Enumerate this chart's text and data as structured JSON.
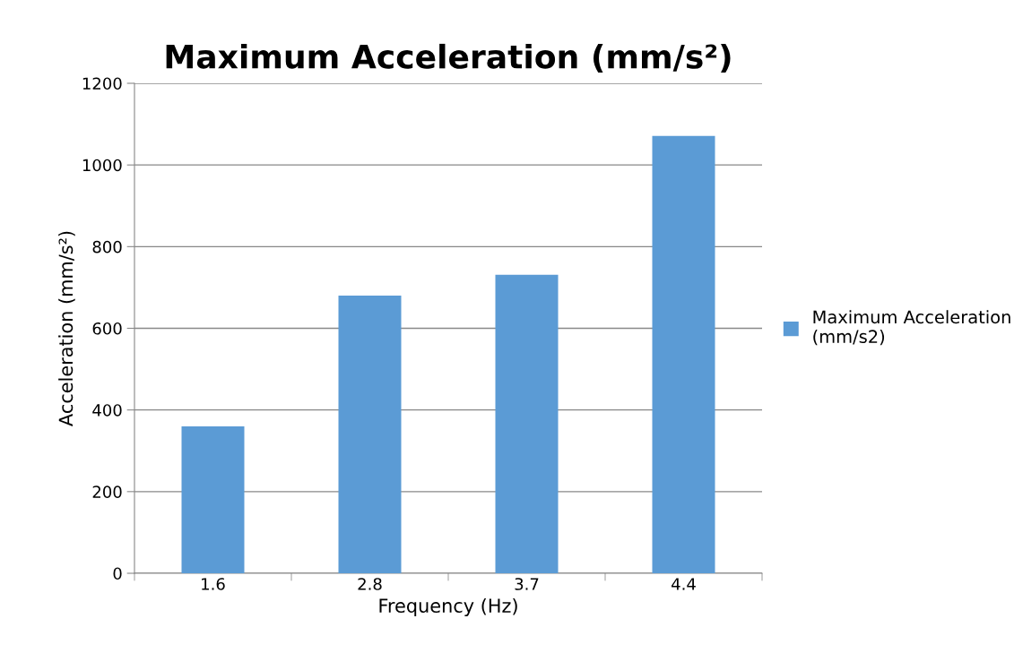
{
  "chart_data": {
    "type": "bar",
    "title": "Maximum Acceleration (mm/s²)",
    "xlabel": "Frequency (Hz)",
    "ylabel": "Acceleration (mm/s²)",
    "categories": [
      "1.6",
      "2.8",
      "3.7",
      "4.4"
    ],
    "series": [
      {
        "name": "Maximum Acceleration (mm/s2)",
        "color": "#5b9bd5",
        "values": [
          360,
          680,
          731,
          1071
        ]
      }
    ],
    "ylim": [
      0,
      1200
    ],
    "yticks": [
      0,
      200,
      400,
      600,
      800,
      1000,
      1200
    ],
    "grid": "y",
    "legend": "right"
  }
}
